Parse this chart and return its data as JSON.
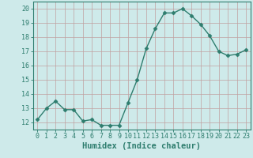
{
  "x": [
    0,
    1,
    2,
    3,
    4,
    5,
    6,
    7,
    8,
    9,
    10,
    11,
    12,
    13,
    14,
    15,
    16,
    17,
    18,
    19,
    20,
    21,
    22,
    23
  ],
  "y": [
    12.2,
    13.0,
    13.5,
    12.9,
    12.9,
    12.1,
    12.2,
    11.8,
    11.8,
    11.8,
    13.4,
    15.0,
    17.2,
    18.6,
    19.7,
    19.7,
    20.0,
    19.5,
    18.9,
    18.1,
    17.0,
    16.7,
    16.8,
    17.1
  ],
  "line_color": "#2e7d6e",
  "marker": "D",
  "markersize": 2.5,
  "linewidth": 1.0,
  "xlabel": "Humidex (Indice chaleur)",
  "ylim": [
    11.5,
    20.5
  ],
  "xlim": [
    -0.5,
    23.5
  ],
  "yticks": [
    12,
    13,
    14,
    15,
    16,
    17,
    18,
    19,
    20
  ],
  "xticks": [
    0,
    1,
    2,
    3,
    4,
    5,
    6,
    7,
    8,
    9,
    10,
    11,
    12,
    13,
    14,
    15,
    16,
    17,
    18,
    19,
    20,
    21,
    22,
    23
  ],
  "bg_color": "#ceeaea",
  "grid_color": "#c0a0a0",
  "line_teal": "#2e7d6e",
  "tick_fontsize": 6.0,
  "xlabel_fontsize": 7.5
}
